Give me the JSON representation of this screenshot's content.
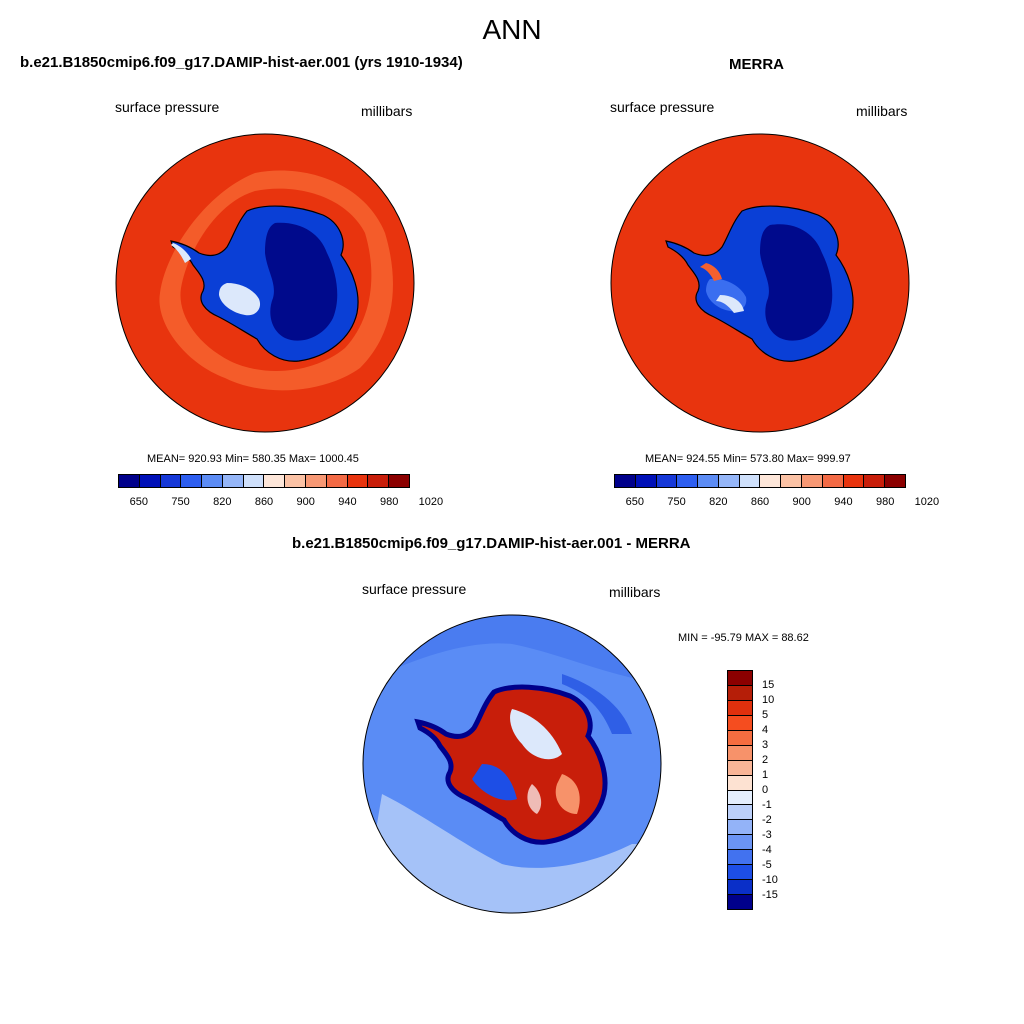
{
  "figure": {
    "title": "ANN",
    "colors": {
      "ocean_red": "#e8340e",
      "ocean_light_red": "#f5602e",
      "land_blue_dark": "#000a8c",
      "land_blue": "#0a3fd6",
      "land_blue_light": "#3a6ef0",
      "ice_white": "#dce8fb",
      "diff_base": "#5a8cf5",
      "diff_light": "#a5c2f8",
      "coast": "#000000"
    }
  },
  "panels": [
    {
      "title": "b.e21.B1850cmip6.f09_g17.DAMIP-hist-aer.001 (yrs 1910-1934)",
      "variable": "surface pressure",
      "units": "millibars",
      "stats": "MEAN= 920.93  Min= 580.35  Max= 1000.45"
    },
    {
      "title": "MERRA",
      "variable": "surface pressure",
      "units": "millibars",
      "stats": "MEAN= 924.55  Min= 573.80  Max= 999.97"
    },
    {
      "title": "b.e21.B1850cmip6.f09_g17.DAMIP-hist-aer.001 - MERRA",
      "variable": "surface pressure",
      "units": "millibars",
      "stats": "MIN = -95.79 MAX =  88.62"
    }
  ],
  "colorbar_abs": {
    "tick_labels": [
      "650",
      "750",
      "820",
      "860",
      "900",
      "940",
      "980",
      "1020"
    ],
    "colors": [
      "#00008b",
      "#0010b8",
      "#1638d8",
      "#2d5ef0",
      "#5c8cf5",
      "#95b6f8",
      "#cfe0fb",
      "#fde6d9",
      "#fbc2a5",
      "#f79874",
      "#f36a45",
      "#e8340e",
      "#c81e0a",
      "#8b0000"
    ]
  },
  "colorbar_diff": {
    "tick_labels": [
      "15",
      "10",
      "5",
      "4",
      "3",
      "2",
      "1",
      "0",
      "-1",
      "-2",
      "-3",
      "-4",
      "-5",
      "-10",
      "-15"
    ],
    "colors": [
      "#8b0000",
      "#b51e08",
      "#e0300d",
      "#f54d1f",
      "#f56d40",
      "#f7926a",
      "#f9b597",
      "#fde2d2",
      "#e4eefd",
      "#bcd0fa",
      "#93b3f8",
      "#6b94f4",
      "#4272ef",
      "#1d4ee6",
      "#0a2fc8",
      "#00008b"
    ]
  }
}
